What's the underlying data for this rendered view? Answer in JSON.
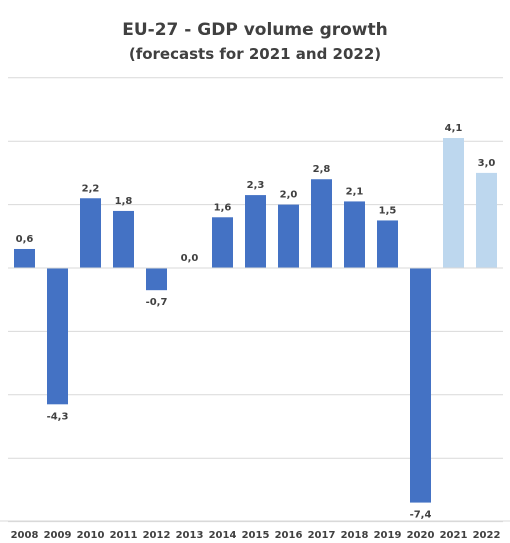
{
  "chart_data": {
    "type": "bar",
    "title": "EU-27 - GDP volume growth",
    "subtitle": "(forecasts for 2021 and 2022)",
    "xlabel": "",
    "ylabel": "",
    "categories": [
      "2008",
      "2009",
      "2010",
      "2011",
      "2012",
      "2013",
      "2014",
      "2015",
      "2016",
      "2017",
      "2018",
      "2019",
      "2020",
      "2021",
      "2022"
    ],
    "values": [
      0.6,
      -4.3,
      2.2,
      1.8,
      -0.7,
      0.0,
      1.6,
      2.3,
      2.0,
      2.8,
      2.1,
      1.5,
      -7.4,
      4.1,
      3.0
    ],
    "data_labels": [
      "0,6",
      "-4,3",
      "2,2",
      "1,8",
      "-0,7",
      "0,0",
      "1,6",
      "2,3",
      "2,0",
      "2,8",
      "2,1",
      "1,5",
      "-7,4",
      "4,1",
      "3,0"
    ],
    "forecast": [
      false,
      false,
      false,
      false,
      false,
      false,
      false,
      false,
      false,
      false,
      false,
      false,
      false,
      true,
      true
    ],
    "ylim": [
      -8,
      6
    ],
    "gridline_step": 2,
    "grid": true,
    "legend": "none",
    "colors": {
      "actual": "#4472c4",
      "forecast": "#bdd7ee",
      "grid": "#d9d9d9",
      "text": "#404040"
    }
  }
}
